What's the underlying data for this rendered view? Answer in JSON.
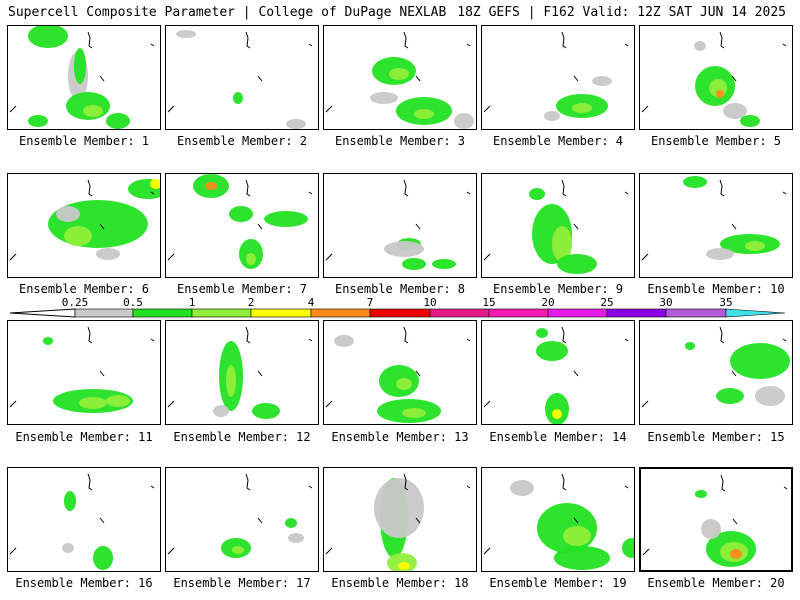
{
  "header": {
    "left": "Supercell Composite Parameter | College of DuPage NEXLAB",
    "right": "18Z GEFS | F162 Valid: 12Z SAT JUN 14 2025"
  },
  "legend": {
    "ticks": [
      "0.25",
      "0.5",
      "1",
      "2",
      "4",
      "7",
      "10",
      "15",
      "20",
      "25",
      "30",
      "35"
    ],
    "colors": [
      "#c8c8c8",
      "#22e122",
      "#90ee3a",
      "#ffff00",
      "#ff8c1a",
      "#ee0000",
      "#e8188a",
      "#ff1ab4",
      "#e61ae6",
      "#8c00e6",
      "#b15cd8",
      "#40e0e8"
    ]
  },
  "panels": [
    {
      "label": "Ensemble Member: 1"
    },
    {
      "label": "Ensemble Member: 2"
    },
    {
      "label": "Ensemble Member: 3"
    },
    {
      "label": "Ensemble Member: 4"
    },
    {
      "label": "Ensemble Member: 5"
    },
    {
      "label": "Ensemble Member: 6"
    },
    {
      "label": "Ensemble Member: 7"
    },
    {
      "label": "Ensemble Member: 8"
    },
    {
      "label": "Ensemble Member: 9"
    },
    {
      "label": "Ensemble Member: 10"
    },
    {
      "label": "Ensemble Member: 11"
    },
    {
      "label": "Ensemble Member: 12"
    },
    {
      "label": "Ensemble Member: 13"
    },
    {
      "label": "Ensemble Member: 14"
    },
    {
      "label": "Ensemble Member: 15"
    },
    {
      "label": "Ensemble Member: 16"
    },
    {
      "label": "Ensemble Member: 17"
    },
    {
      "label": "Ensemble Member: 18"
    },
    {
      "label": "Ensemble Member: 19"
    },
    {
      "label": "Ensemble Member: 20",
      "selected": true
    }
  ]
}
